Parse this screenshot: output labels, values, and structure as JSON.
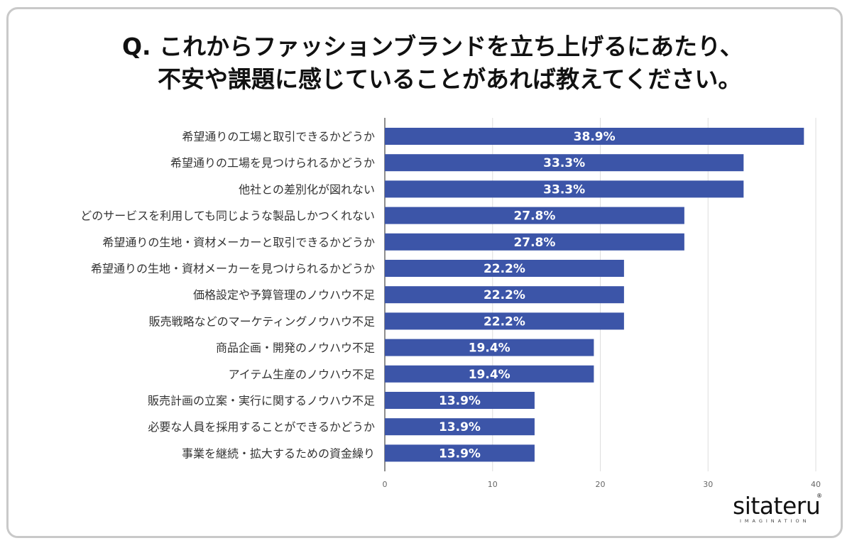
{
  "title": {
    "line1": "Q. これからファッションブランドを立ち上げるにあたり、",
    "line2": "不安や課題に感じていることがあれば教えてください。"
  },
  "brand": {
    "name": "sitateru",
    "tagline": "IMAGINATION",
    "mark": "®"
  },
  "colors": {
    "bar": "#3c55a8",
    "grid": "#dddddd",
    "axis": "#444444"
  },
  "chart_data": {
    "type": "bar",
    "orientation": "horizontal",
    "categories": [
      "希望通りの工場と取引できるかどうか",
      "希望通りの工場を見つけられるかどうか",
      "他社との差別化が図れない",
      "どのサービスを利用しても同じような製品しかつくれない",
      "希望通りの生地・資材メーカーと取引できるかどうか",
      "希望通りの生地・資材メーカーを見つけられるかどうか",
      "価格設定や予算管理のノウハウ不足",
      "販売戦略などのマーケティングノウハウ不足",
      "商品企画・開発のノウハウ不足",
      "アイテム生産のノウハウ不足",
      "販売計画の立案・実行に関するノウハウ不足",
      "必要な人員を採用することができるかどうか",
      "事業を継続・拡大するための資金繰り"
    ],
    "values": [
      38.9,
      33.3,
      33.3,
      27.8,
      27.8,
      22.2,
      22.2,
      22.2,
      19.4,
      19.4,
      13.9,
      13.9,
      13.9
    ],
    "value_labels": [
      "38.9%",
      "33.3%",
      "33.3%",
      "27.8%",
      "27.8%",
      "22.2%",
      "22.2%",
      "22.2%",
      "19.4%",
      "19.4%",
      "13.9%",
      "13.9%",
      "13.9%"
    ],
    "xlim": [
      0,
      40
    ],
    "xticks": [
      0,
      10,
      20,
      30,
      40
    ],
    "xtick_labels": [
      "0",
      "10",
      "20",
      "30",
      "40"
    ],
    "grid": true
  }
}
